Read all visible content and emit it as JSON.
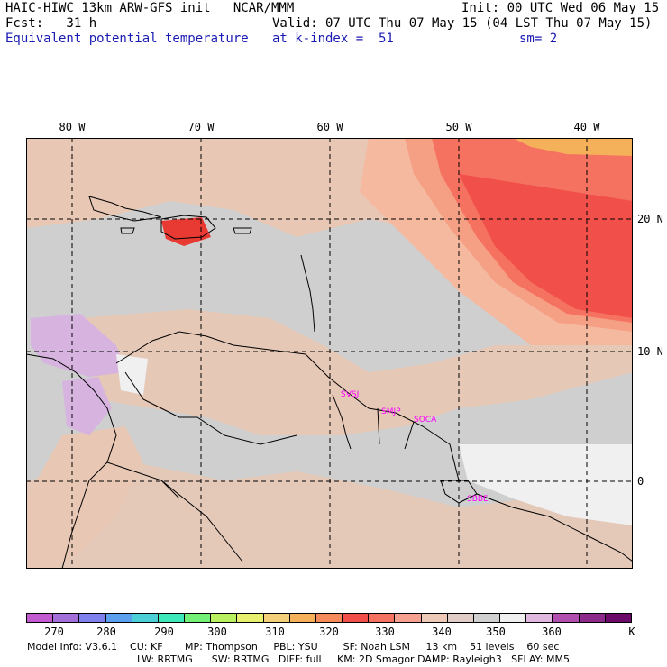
{
  "header": {
    "line1_left": "HAIC-HIWC 13km ARW-GFS init   NCAR/MMM",
    "line1_right": "Init: 00 UTC Wed 06 May 15",
    "line2_left": "Fcst:   31 h",
    "line2_right": "Valid: 07 UTC Thu 07 May 15 (04 LST Thu 07 May 15)",
    "line3_left": "Equivalent potential temperature",
    "line3_mid": "at k-index =  51",
    "line3_right": "sm= 2"
  },
  "map": {
    "lon_labels": [
      "80 W",
      "70 W",
      "60 W",
      "50 W",
      "40 W"
    ],
    "lat_labels": [
      "20 N",
      "10 N",
      "0"
    ],
    "stations": [
      "SVSJ",
      "SMJP",
      "SOCA",
      "SBBE"
    ],
    "colors": {
      "gray": "#cfcfcf",
      "tan": "#e8c7b4",
      "peach": "#f5b9a0",
      "salmon": "#f59f84",
      "orange_red": "#f57260",
      "red": "#f04f4a",
      "light_orange": "#f5b05a",
      "pale": "#f0f0f0",
      "lavender": "#d7b3df",
      "dark_red": "#e83a33"
    }
  },
  "colorbar": {
    "colors": [
      "#c35bd0",
      "#a36fd8",
      "#7f7fee",
      "#5b9fee",
      "#4bd0d8",
      "#3fe8b8",
      "#74f078",
      "#b8f060",
      "#e8f070",
      "#f5d07a",
      "#f5b05a",
      "#f58a5a",
      "#f04f4a",
      "#f57260",
      "#f5a090",
      "#eec9b8",
      "#e0cdc8",
      "#d0d0d0",
      "#f0f0f0",
      "#e0b8e0",
      "#b04fb0",
      "#8b2a8b",
      "#6b0a6b"
    ],
    "ticks": [
      "270",
      "280",
      "290",
      "300",
      "310",
      "320",
      "330",
      "340",
      "350",
      "360"
    ],
    "unit": "K"
  },
  "model_info": {
    "line1": "Model Info: V3.6.1    CU: KF       MP: Thompson     PBL: YSU        SF: Noah LSM     13 km    51 levels    60 sec",
    "line2": "LW: RRTMG      SW: RRTMG   DIFF: full     KM: 2D Smagor DAMP: Rayleigh3   SFLAY: MM5"
  }
}
